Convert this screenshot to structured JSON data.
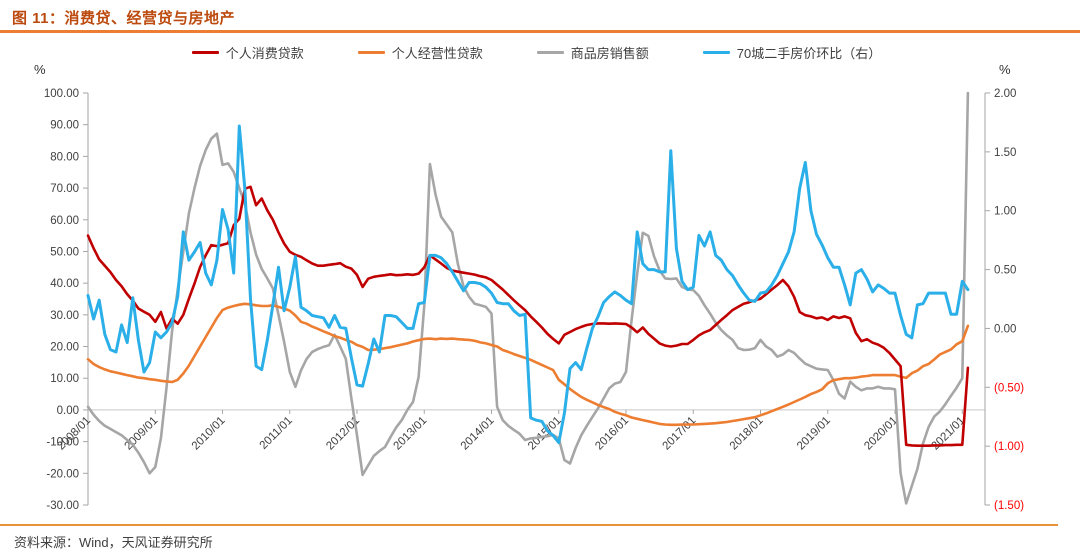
{
  "header": {
    "title": "图 11：消费贷、经营贷与房地产"
  },
  "footer": {
    "source_label": "资料来源：Wind，天风证券研究所"
  },
  "axes": {
    "left_unit": "%",
    "right_unit": "%",
    "left_ticks": [
      {
        "label": "100.00",
        "value": 100
      },
      {
        "label": "90.00",
        "value": 90
      },
      {
        "label": "80.00",
        "value": 80
      },
      {
        "label": "70.00",
        "value": 70
      },
      {
        "label": "60.00",
        "value": 60
      },
      {
        "label": "50.00",
        "value": 50
      },
      {
        "label": "40.00",
        "value": 40
      },
      {
        "label": "30.00",
        "value": 30
      },
      {
        "label": "20.00",
        "value": 20
      },
      {
        "label": "10.00",
        "value": 10
      },
      {
        "label": "0.00",
        "value": 0
      },
      {
        "label": "-10.00",
        "value": -10
      },
      {
        "label": "-20.00",
        "value": -20
      },
      {
        "label": "-30.00",
        "value": -30
      }
    ],
    "right_ticks": [
      {
        "label": "2.00",
        "value": 2.0,
        "negative": false
      },
      {
        "label": "1.50",
        "value": 1.5,
        "negative": false
      },
      {
        "label": "1.00",
        "value": 1.0,
        "negative": false
      },
      {
        "label": "0.50",
        "value": 0.5,
        "negative": false
      },
      {
        "label": "0.00",
        "value": 0.0,
        "negative": false
      },
      {
        "label": "(0.50)",
        "value": -0.5,
        "negative": true
      },
      {
        "label": "(1.00)",
        "value": -1.0,
        "negative": true
      },
      {
        "label": "(1.50)",
        "value": -1.5,
        "negative": true
      }
    ],
    "x_ticks": [
      {
        "label": "2008/01",
        "month_index": 0
      },
      {
        "label": "2009/01",
        "month_index": 12
      },
      {
        "label": "2010/01",
        "month_index": 24
      },
      {
        "label": "2011/01",
        "month_index": 36
      },
      {
        "label": "2012/01",
        "month_index": 48
      },
      {
        "label": "2013/01",
        "month_index": 60
      },
      {
        "label": "2014/01",
        "month_index": 72
      },
      {
        "label": "2015/01",
        "month_index": 84
      },
      {
        "label": "2016/01",
        "month_index": 96
      },
      {
        "label": "2017/01",
        "month_index": 108
      },
      {
        "label": "2018/01",
        "month_index": 120
      },
      {
        "label": "2019/01",
        "month_index": 132
      },
      {
        "label": "2020/01",
        "month_index": 144
      },
      {
        "label": "2021/01",
        "month_index": 156
      }
    ]
  },
  "colors": {
    "consumer_loan": "#c00000",
    "business_loan": "#ed7d31",
    "housing_sales": "#a6a6a6",
    "city70_price": "#2bafe8",
    "negative_tick": "#ff0000",
    "axis_line": "#a6a6a6",
    "tick_text": "#404040"
  },
  "chart_data": {
    "type": "line",
    "title": "图 11：消费贷、经营贷与房地产",
    "x_start": "2008/01",
    "x_end": "2021/02",
    "step_months": 1,
    "x_label_rotation": -45,
    "grid": "zero-line-only",
    "legend_position": "top",
    "left_axis": {
      "unit": "%",
      "min": -30,
      "max": 100,
      "step": 10
    },
    "right_axis": {
      "unit": "%",
      "min": -1.5,
      "max": 2.0,
      "step": 0.5,
      "negative_format": "parentheses_red"
    },
    "series": [
      {
        "name": "个人消费贷款",
        "axis": "left",
        "color": "#c00000",
        "width": 2.6,
        "values": [
          55,
          51,
          47.5,
          45.5,
          43.5,
          41,
          39,
          36.5,
          34.5,
          32,
          31,
          30,
          27.8,
          30.9,
          25.7,
          28.8,
          27.2,
          30,
          35.1,
          39.9,
          45.1,
          48.8,
          52,
          51.7,
          52.1,
          52.6,
          58.3,
          60.3,
          69.8,
          70.4,
          64.6,
          66.7,
          63,
          60,
          56,
          52.5,
          49.9,
          48.9,
          48.3,
          47.2,
          46.2,
          45.5,
          45.5,
          45.8,
          46,
          46.3,
          45.2,
          44.6,
          42.6,
          38.8,
          41.4,
          42,
          42.3,
          42.5,
          42.8,
          42.5,
          42.6,
          42.8,
          42.6,
          43,
          45,
          48.8,
          47.5,
          46.2,
          44.8,
          44,
          43.6,
          43.3,
          43,
          42.7,
          42.2,
          41.8,
          41,
          39.5,
          38,
          36.3,
          34.6,
          33,
          31.5,
          29.5,
          27.8,
          26,
          24,
          22.4,
          21,
          23.7,
          24.6,
          25.5,
          26.2,
          26.8,
          27.1,
          27.3,
          27.3,
          27.2,
          27.3,
          27.2,
          27.1,
          26,
          24.5,
          26,
          24,
          22.5,
          21,
          20.3,
          20,
          20.3,
          20.8,
          20.8,
          22.1,
          23.5,
          24.5,
          25.2,
          26.8,
          28.4,
          29.9,
          31.5,
          32.5,
          33.5,
          34,
          34.6,
          35.1,
          36.5,
          38,
          39.4,
          41,
          39,
          35.7,
          30.9,
          29.9,
          29.5,
          28.9,
          29.2,
          28.4,
          29.5,
          29,
          29.5,
          28.9,
          24.3,
          21.7,
          22.3,
          21.2,
          20.6,
          19.6,
          18,
          15.9,
          13.8,
          -11,
          -11.2,
          -11.3,
          -11.3,
          -11.3,
          -11.2,
          -11.2,
          -11.1,
          -11.1,
          -11,
          -11,
          13.3
        ]
      },
      {
        "name": "个人经营性贷款",
        "axis": "left",
        "color": "#ed7d31",
        "width": 2.6,
        "values": [
          16,
          14.5,
          13.5,
          12.8,
          12.2,
          11.8,
          11.4,
          11,
          10.6,
          10.2,
          10,
          9.7,
          9.5,
          9.2,
          9,
          8.8,
          9.5,
          11.5,
          14,
          17,
          20,
          23,
          26,
          29,
          31.5,
          32.3,
          32.8,
          33.2,
          33.5,
          33.3,
          33,
          32.8,
          32.8,
          33,
          32.5,
          32,
          31.3,
          29.8,
          27.8,
          27.2,
          26.3,
          25.6,
          24.8,
          24.1,
          23.3,
          22.8,
          22.1,
          21.5,
          20.5,
          19.9,
          18.9,
          19,
          19.2,
          19.5,
          19.8,
          20.2,
          20.6,
          21,
          21.6,
          22,
          22.4,
          22.5,
          22.3,
          22.5,
          22.4,
          22.5,
          22.3,
          22.2,
          22.1,
          21.8,
          21.3,
          21,
          20.5,
          20,
          18.9,
          18.3,
          17.6,
          17,
          16.4,
          15.8,
          15,
          14.2,
          13.4,
          12.6,
          9.5,
          8.1,
          6.6,
          5.3,
          4.1,
          3.2,
          2.4,
          1.6,
          0.9,
          0.3,
          -0.6,
          -1.2,
          -1.7,
          -2.4,
          -2.8,
          -3.2,
          -3.6,
          -4,
          -4.4,
          -4.6,
          -4.7,
          -4.7,
          -4.6,
          -4.6,
          -4.6,
          -4.5,
          -4.4,
          -4.3,
          -4.2,
          -4,
          -3.8,
          -3.5,
          -3.2,
          -2.9,
          -2.6,
          -2.3,
          -1.7,
          -1.1,
          -0.4,
          0.3,
          1,
          1.7,
          2.5,
          3.3,
          4.1,
          5,
          5.7,
          6.5,
          8.4,
          9.4,
          9.7,
          10,
          10,
          10.2,
          10.5,
          10.7,
          11,
          11,
          11,
          11,
          11,
          10.5,
          10.1,
          11.6,
          12.4,
          13.8,
          14.5,
          15.9,
          17.5,
          18.3,
          19.1,
          20.7,
          21.7,
          26.5
        ]
      },
      {
        "name": "商品房销售额",
        "axis": "left",
        "color": "#a6a6a6",
        "width": 2.6,
        "values": [
          1,
          -1.5,
          -3.5,
          -5,
          -6,
          -7,
          -8,
          -9.5,
          -11,
          -13.5,
          -16.5,
          -20,
          -18,
          -9,
          7,
          25,
          38,
          50,
          62,
          70,
          77,
          82,
          85.6,
          87.2,
          77.3,
          77.8,
          75.1,
          70,
          65,
          56,
          49,
          44.5,
          41.5,
          38.3,
          30,
          21.5,
          12,
          7.3,
          12.5,
          16.1,
          18.3,
          19.2,
          19.9,
          20.4,
          23.7,
          20,
          16.1,
          3.6,
          -8,
          -20.5,
          -17.5,
          -14.5,
          -13,
          -11.7,
          -8.5,
          -5.5,
          -3.2,
          0,
          2.5,
          10.4,
          33,
          77.6,
          68,
          61,
          58.5,
          56,
          46,
          39,
          35.7,
          33.5,
          33,
          32.5,
          30.4,
          1,
          -3.2,
          -5,
          -6.3,
          -7.5,
          -9.5,
          -9,
          -8.8,
          -8.5,
          -8.3,
          -7.9,
          -9,
          -15.8,
          -16.9,
          -12,
          -8,
          -5,
          -2.2,
          0.5,
          3.6,
          6.8,
          8.3,
          8.8,
          12,
          28.4,
          43,
          55.9,
          54.9,
          48.5,
          44,
          41.5,
          41.3,
          41.5,
          38.8,
          38,
          37.8,
          36,
          33,
          30.4,
          27.5,
          25.2,
          23.5,
          22.1,
          19.5,
          18.9,
          19,
          19.5,
          22.1,
          20,
          18.9,
          16.8,
          17.5,
          18.9,
          18,
          16.2,
          14.6,
          13.8,
          13,
          12.8,
          12.6,
          9.4,
          5.1,
          3.6,
          8.9,
          7.3,
          6.2,
          6.8,
          6.8,
          7.3,
          6.8,
          6.8,
          6.5,
          -20,
          -29.5,
          -24,
          -18.6,
          -10.6,
          -5.4,
          -2.1,
          -0.5,
          1.8,
          4.5,
          7,
          10,
          100
        ]
      },
      {
        "name": "70城二手房价环比（右）",
        "axis": "right",
        "color": "#2bafe8",
        "width": 3,
        "values": [
          0.28,
          0.08,
          0.24,
          -0.05,
          -0.18,
          -0.2,
          0.03,
          -0.12,
          0.26,
          -0.1,
          -0.37,
          -0.29,
          -0.03,
          -0.08,
          -0.03,
          0.05,
          0.27,
          0.82,
          0.58,
          0.65,
          0.73,
          0.47,
          0.37,
          0.58,
          1.01,
          0.84,
          0.47,
          1.72,
          1.18,
          0.25,
          -0.32,
          -0.35,
          -0.1,
          0.2,
          0.52,
          0.15,
          0.35,
          0.61,
          0.18,
          0.15,
          0.11,
          0.1,
          0.09,
          0.01,
          0.11,
          0.01,
          0,
          -0.25,
          -0.48,
          -0.49,
          -0.3,
          -0.09,
          -0.2,
          0.11,
          0.11,
          0.1,
          0.05,
          0,
          0,
          0.21,
          0.22,
          0.62,
          0.62,
          0.6,
          0.55,
          0.48,
          0.4,
          0.32,
          0.39,
          0.39,
          0.38,
          0.35,
          0.3,
          0.22,
          0.21,
          0.21,
          0.15,
          0.11,
          0.12,
          -0.76,
          -0.78,
          -0.79,
          -0.87,
          -0.91,
          -0.97,
          -0.72,
          -0.34,
          -0.29,
          -0.35,
          -0.17,
          0,
          0.1,
          0.22,
          0.27,
          0.31,
          0.28,
          0.24,
          0.21,
          0.82,
          0.55,
          0.5,
          0.5,
          0.48,
          0.48,
          1.51,
          0.68,
          0.4,
          0.33,
          0.35,
          0.79,
          0.7,
          0.82,
          0.62,
          0.58,
          0.5,
          0.45,
          0.37,
          0.3,
          0.24,
          0.23,
          0.3,
          0.31,
          0.37,
          0.45,
          0.55,
          0.65,
          0.82,
          1.19,
          1.41,
          1.0,
          0.8,
          0.71,
          0.6,
          0.52,
          0.52,
          0.37,
          0.2,
          0.47,
          0.5,
          0.42,
          0.31,
          0.37,
          0.34,
          0.3,
          0.3,
          0.11,
          -0.05,
          -0.08,
          0.2,
          0.21,
          0.3,
          0.3,
          0.3,
          0.3,
          0.12,
          0.12,
          0.4,
          0.33
        ]
      }
    ]
  }
}
